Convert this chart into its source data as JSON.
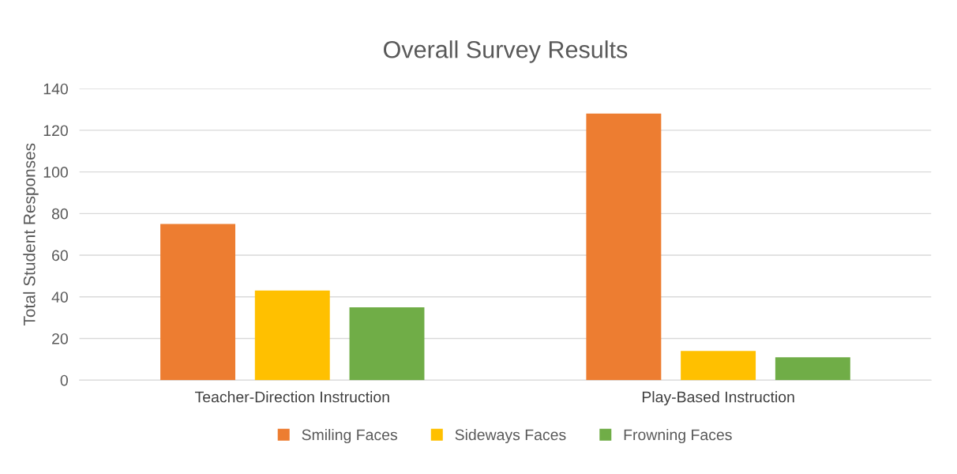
{
  "chart_data": {
    "type": "bar",
    "title": "Overall Survey Results",
    "ylabel": "Total Student Responses",
    "categories": [
      "Teacher-Direction Instruction",
      "Play-Based Instruction"
    ],
    "series": [
      {
        "name": "Smiling Faces",
        "color": "#ed7d31",
        "values": [
          75,
          128
        ]
      },
      {
        "name": "Sideways Faces",
        "color": "#ffc000",
        "values": [
          43,
          14
        ]
      },
      {
        "name": "Frowning Faces",
        "color": "#70ad47",
        "values": [
          35,
          11
        ]
      }
    ],
    "ylim": [
      0,
      140
    ],
    "yticks": [
      0,
      20,
      40,
      60,
      80,
      100,
      120,
      140
    ],
    "grid": "y",
    "legend": "bottom"
  }
}
